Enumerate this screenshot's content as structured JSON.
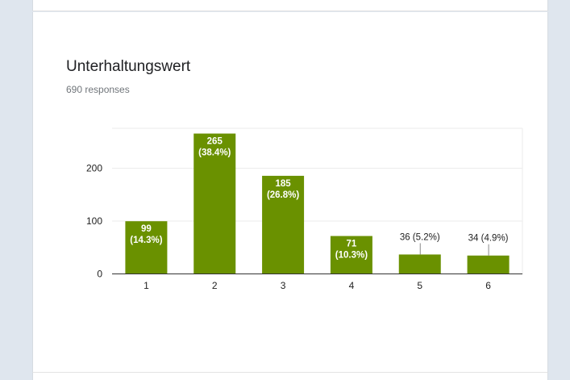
{
  "question": {
    "title": "Unterhaltungswert",
    "responses": "690 responses"
  },
  "colors": {
    "bar": "#6a9100",
    "grid": "#ebebeb",
    "axis": "#333333"
  },
  "chart_data": {
    "type": "bar",
    "title": "Unterhaltungswert",
    "categories": [
      "1",
      "2",
      "3",
      "4",
      "5",
      "6"
    ],
    "values": [
      99,
      265,
      185,
      71,
      36,
      34
    ],
    "labels": [
      [
        "99",
        "(14.3%)"
      ],
      [
        "265",
        "(38.4%)"
      ],
      [
        "185",
        "(26.8%)"
      ],
      [
        "71",
        "(10.3%)"
      ],
      [
        "36 (5.2%)"
      ],
      [
        "34 (4.9%)"
      ]
    ],
    "yticks": [
      0,
      100,
      200
    ],
    "ylim": [
      0,
      275
    ],
    "grid": true,
    "xlabel": "",
    "ylabel": ""
  }
}
